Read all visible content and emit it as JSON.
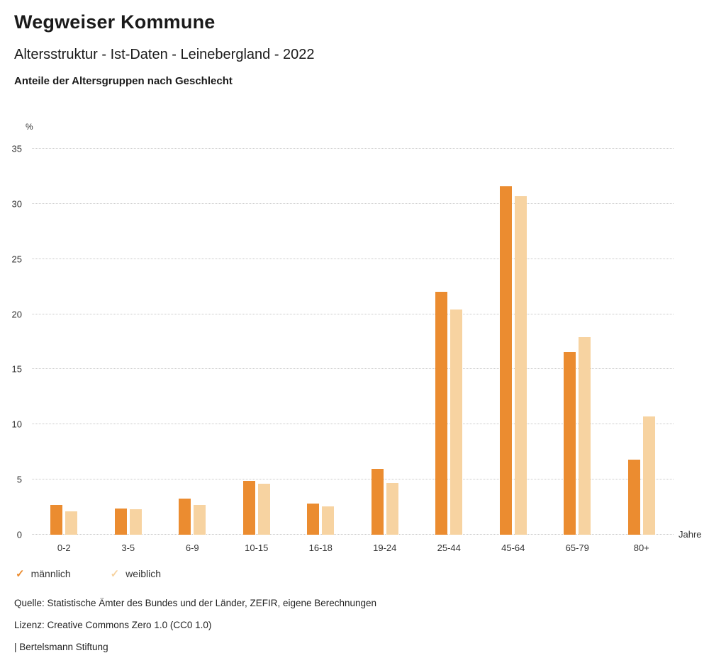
{
  "header": {
    "title": "Wegweiser Kommune",
    "subtitle": "Altersstruktur - Ist-Daten - Leinebergland - 2022",
    "chart_heading": "Anteile der Altersgruppen nach Geschlecht"
  },
  "chart_data": {
    "type": "bar",
    "title": "Anteile der Altersgruppen nach Geschlecht",
    "unit_label": "%",
    "xlabel": "Jahre",
    "ylabel": "%",
    "ylim": [
      0,
      35
    ],
    "yticks": [
      0,
      5,
      10,
      15,
      20,
      25,
      30,
      35
    ],
    "grid": true,
    "legend_position": "bottom",
    "categories": [
      "0-2",
      "3-5",
      "6-9",
      "10-15",
      "16-18",
      "19-24",
      "25-44",
      "45-64",
      "65-79",
      "80+"
    ],
    "series": [
      {
        "name": "männlich",
        "color": "#EB8C30",
        "values": [
          2.7,
          2.4,
          3.3,
          4.9,
          2.8,
          6.0,
          22.0,
          31.6,
          16.6,
          6.8
        ]
      },
      {
        "name": "weiblich",
        "color": "#F7D3A1",
        "values": [
          2.1,
          2.3,
          2.7,
          4.6,
          2.6,
          4.7,
          20.4,
          30.7,
          17.9,
          10.7
        ]
      }
    ]
  },
  "legend": {
    "items": [
      {
        "label": "männlich",
        "color": "#EB8C30"
      },
      {
        "label": "weiblich",
        "color": "#F7D3A1"
      }
    ]
  },
  "footer": {
    "source": "Quelle: Statistische Ämter des Bundes und der Länder, ZEFIR, eigene Berechnungen",
    "license": "Lizenz: Creative Commons Zero 1.0 (CC0 1.0)",
    "attribution": "| Bertelsmann Stiftung"
  }
}
